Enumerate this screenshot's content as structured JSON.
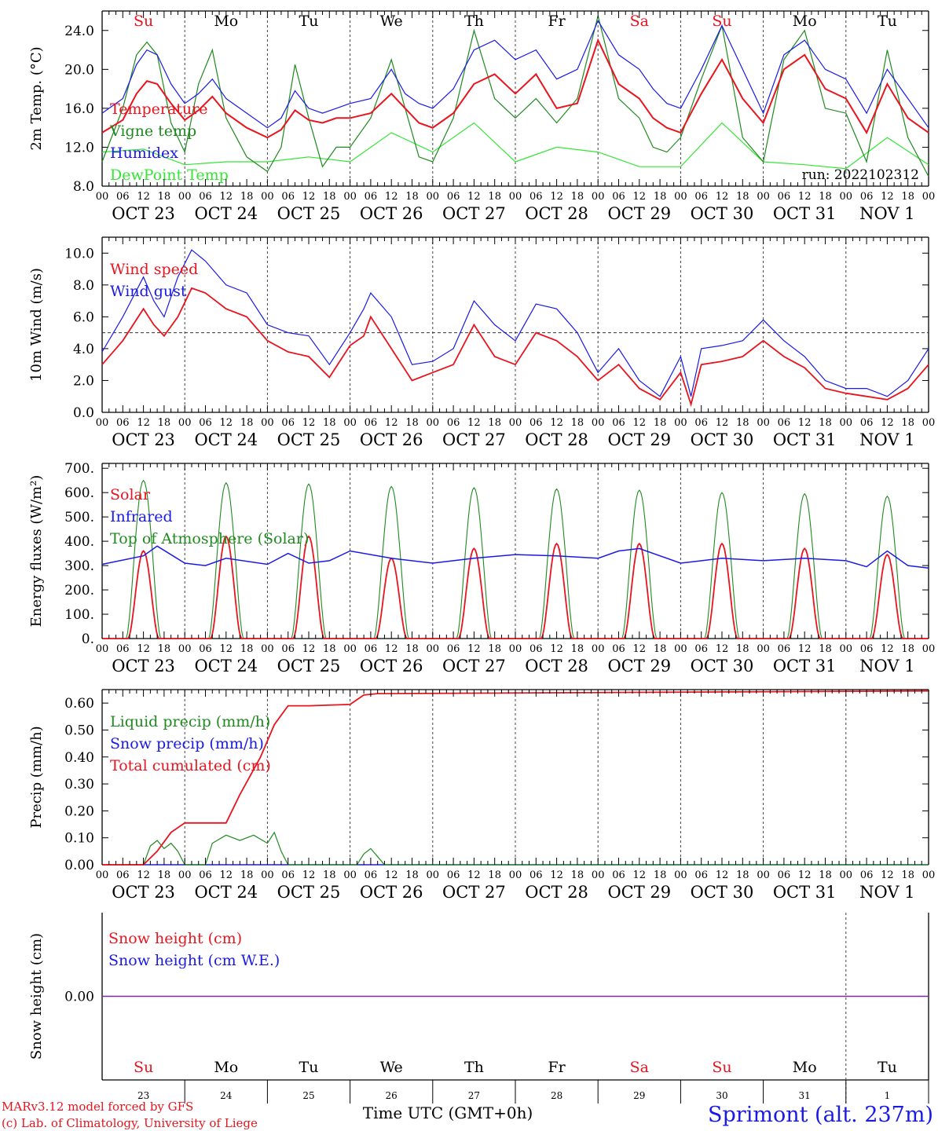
{
  "meta": {
    "footer_left_1": "MARv3.12 model forced by GFS",
    "footer_left_2": "(c) Lab. of Climatology, University of Liege",
    "footer_xlabel": "Time UTC (GMT+0h)",
    "footer_location": "Sprimont (alt. 237m)",
    "run_label": "run: 2022102312"
  },
  "colors": {
    "red": "#e8141e",
    "blue": "#1a1ae6",
    "green": "#1f8a1f",
    "lightgreen": "#33e633",
    "purple": "#7a2a9e",
    "axis": "#000000"
  },
  "time_axis": {
    "hours_per_day": [
      "00",
      "06",
      "12",
      "18"
    ],
    "last_hour": "00",
    "dates": [
      "OCT 23",
      "OCT 24",
      "OCT 25",
      "OCT 26",
      "OCT 27",
      "OCT 28",
      "OCT 29",
      "OCT 30",
      "OCT 31",
      "NOV  1"
    ],
    "weekdays": [
      "Su",
      "Mo",
      "Tu",
      "We",
      "Th",
      "Fr",
      "Sa",
      "Su",
      "Mo",
      "Tu"
    ],
    "weekday_colors": [
      "red",
      "black",
      "black",
      "black",
      "black",
      "black",
      "red",
      "red",
      "black",
      "black"
    ],
    "day_numbers": [
      "23",
      "24",
      "25",
      "26",
      "27",
      "28",
      "29",
      "30",
      "31",
      "1"
    ]
  },
  "chart_data": [
    {
      "type": "line",
      "ylabel": "2m Temp. (°C)",
      "ylim": [
        8,
        26
      ],
      "yticks": [
        "8.0",
        "12.0",
        "16.0",
        "20.0",
        "24.0"
      ],
      "x_unit": "hours since OCT 23 00 UTC",
      "series": [
        {
          "name": "Temperature",
          "color": "red",
          "x": [
            0,
            6,
            10,
            13,
            16,
            20,
            24,
            28,
            32,
            36,
            42,
            48,
            52,
            56,
            60,
            64,
            68,
            72,
            78,
            84,
            88,
            92,
            96,
            102,
            108,
            114,
            120,
            126,
            132,
            138,
            144,
            150,
            156,
            160,
            164,
            168,
            174,
            180,
            186,
            192,
            198,
            204,
            210,
            216,
            222,
            228,
            234,
            240
          ],
          "y": [
            13.5,
            14.8,
            17.5,
            18.8,
            18.5,
            16.5,
            14.8,
            15.8,
            17.2,
            15.5,
            14.0,
            13.0,
            13.8,
            15.8,
            14.8,
            14.5,
            15.0,
            15.0,
            15.5,
            17.5,
            16.0,
            14.5,
            14.0,
            15.5,
            18.5,
            19.5,
            17.5,
            19.5,
            16.0,
            16.5,
            23.0,
            18.5,
            17.0,
            15.0,
            14.0,
            13.5,
            17.5,
            21.0,
            17.0,
            14.5,
            20.0,
            21.5,
            18.0,
            17.0,
            13.5,
            18.5,
            15.0,
            13.5
          ]
        },
        {
          "name": "Vigne temp",
          "color": "green",
          "x": [
            0,
            6,
            10,
            13,
            16,
            20,
            24,
            28,
            32,
            36,
            42,
            48,
            52,
            56,
            60,
            64,
            68,
            72,
            78,
            84,
            88,
            92,
            96,
            102,
            108,
            114,
            120,
            126,
            132,
            138,
            144,
            150,
            156,
            160,
            164,
            168,
            174,
            180,
            186,
            192,
            198,
            204,
            210,
            216,
            222,
            228,
            234,
            240
          ],
          "y": [
            10.5,
            16.0,
            21.5,
            22.8,
            21.5,
            14.5,
            11.5,
            18.5,
            22.0,
            15.0,
            11.0,
            9.5,
            12.0,
            20.5,
            15.0,
            10.0,
            12.0,
            12.0,
            15.0,
            21.0,
            16.0,
            11.0,
            10.5,
            15.0,
            24.0,
            17.0,
            15.0,
            17.0,
            14.5,
            17.0,
            25.5,
            17.0,
            15.0,
            12.0,
            11.5,
            13.0,
            19.0,
            24.5,
            13.0,
            10.5,
            21.0,
            24.0,
            16.0,
            15.5,
            10.5,
            22.0,
            13.0,
            9.0
          ]
        },
        {
          "name": "Humidex",
          "color": "blue",
          "x": [
            0,
            6,
            10,
            13,
            16,
            20,
            24,
            28,
            32,
            36,
            42,
            48,
            52,
            56,
            60,
            64,
            68,
            72,
            78,
            84,
            88,
            92,
            96,
            102,
            108,
            114,
            120,
            126,
            132,
            138,
            144,
            150,
            156,
            160,
            164,
            168,
            174,
            180,
            186,
            192,
            198,
            204,
            210,
            216,
            222,
            228,
            234,
            240
          ],
          "y": [
            15.5,
            17.0,
            20.5,
            22.0,
            21.5,
            18.5,
            16.5,
            17.5,
            19.0,
            17.0,
            15.5,
            14.0,
            15.0,
            17.8,
            16.0,
            15.5,
            16.0,
            16.5,
            17.0,
            20.0,
            17.5,
            16.5,
            16.0,
            18.0,
            22.0,
            23.0,
            21.0,
            22.0,
            19.0,
            20.0,
            25.0,
            21.5,
            20.0,
            18.0,
            16.5,
            16.0,
            20.0,
            24.5,
            20.0,
            15.5,
            21.5,
            23.0,
            20.0,
            19.0,
            15.5,
            20.0,
            17.0,
            14.0
          ]
        },
        {
          "name": "DewPoint Temp",
          "color": "lightgreen",
          "x": [
            0,
            12,
            24,
            36,
            48,
            60,
            72,
            84,
            96,
            108,
            120,
            132,
            144,
            156,
            168,
            180,
            192,
            204,
            216,
            228,
            240
          ],
          "y": [
            11.5,
            11.8,
            10.2,
            10.5,
            10.5,
            11.0,
            10.5,
            13.5,
            11.5,
            14.5,
            10.5,
            12.0,
            11.5,
            10.0,
            10.0,
            14.5,
            10.5,
            10.2,
            9.8,
            13.0,
            10.2
          ]
        }
      ]
    },
    {
      "type": "line",
      "ylabel": "10m Wind (m/s)",
      "ylim": [
        0,
        11
      ],
      "yticks": [
        "0.0",
        "2.0",
        "4.0",
        "6.0",
        "8.0",
        "10.0"
      ],
      "reference_line": 5.0,
      "series": [
        {
          "name": "Wind speed",
          "color": "red",
          "x": [
            0,
            6,
            12,
            15,
            18,
            22,
            26,
            30,
            36,
            42,
            48,
            54,
            60,
            66,
            72,
            76,
            78,
            84,
            90,
            96,
            102,
            108,
            114,
            120,
            126,
            132,
            138,
            144,
            150,
            156,
            162,
            168,
            171,
            174,
            180,
            186,
            192,
            198,
            204,
            210,
            216,
            222,
            228,
            234,
            240
          ],
          "y": [
            3.0,
            4.5,
            6.5,
            5.5,
            4.8,
            6.0,
            7.8,
            7.5,
            6.5,
            6.0,
            4.5,
            3.8,
            3.5,
            2.2,
            4.2,
            4.8,
            6.0,
            4.0,
            2.0,
            2.5,
            3.0,
            5.5,
            3.5,
            3.0,
            5.0,
            4.5,
            3.5,
            2.0,
            3.0,
            1.5,
            0.8,
            2.5,
            0.5,
            3.0,
            3.2,
            3.5,
            4.5,
            3.5,
            2.8,
            1.5,
            1.2,
            1.0,
            0.8,
            1.5,
            3.0
          ]
        },
        {
          "name": "Wind gust",
          "color": "blue",
          "x": [
            0,
            6,
            12,
            15,
            18,
            22,
            26,
            30,
            36,
            42,
            48,
            54,
            60,
            66,
            72,
            76,
            78,
            84,
            90,
            96,
            102,
            108,
            114,
            120,
            126,
            132,
            138,
            144,
            150,
            156,
            162,
            168,
            171,
            174,
            180,
            186,
            192,
            198,
            204,
            210,
            216,
            222,
            228,
            234,
            240
          ],
          "y": [
            3.8,
            6.0,
            8.5,
            7.0,
            6.0,
            8.5,
            10.2,
            9.5,
            8.0,
            7.5,
            5.5,
            5.0,
            4.8,
            3.0,
            5.0,
            6.5,
            7.5,
            6.0,
            3.0,
            3.2,
            4.0,
            7.0,
            5.5,
            4.5,
            6.8,
            6.5,
            5.0,
            2.5,
            4.0,
            2.0,
            1.0,
            3.5,
            1.0,
            4.0,
            4.2,
            4.5,
            5.8,
            4.5,
            3.5,
            2.0,
            1.5,
            1.5,
            1.0,
            2.0,
            4.0
          ]
        }
      ]
    },
    {
      "type": "line",
      "ylabel": "Energy fluxes (W/m²)",
      "ylim": [
        0,
        720
      ],
      "yticks": [
        "0.",
        "100.",
        "200.",
        "300.",
        "400.",
        "500.",
        "600.",
        "700."
      ],
      "solar_peaks": [
        360,
        420,
        420,
        330,
        370,
        390,
        390,
        390,
        370,
        345
      ],
      "toa_peaks": [
        650,
        640,
        635,
        625,
        620,
        615,
        610,
        600,
        595,
        585
      ],
      "series": [
        {
          "name": "Solar",
          "color": "red"
        },
        {
          "name": "Infrared",
          "color": "blue",
          "x": [
            0,
            12,
            16,
            24,
            30,
            36,
            48,
            54,
            60,
            66,
            72,
            84,
            96,
            108,
            120,
            132,
            144,
            150,
            156,
            168,
            180,
            192,
            204,
            216,
            222,
            228,
            234,
            240
          ],
          "y": [
            305,
            340,
            380,
            310,
            300,
            330,
            305,
            350,
            310,
            320,
            360,
            330,
            310,
            330,
            345,
            340,
            330,
            360,
            370,
            310,
            330,
            320,
            330,
            320,
            295,
            360,
            300,
            290
          ]
        },
        {
          "name": "Top of Atmosphere (Solar)",
          "color": "green"
        }
      ]
    },
    {
      "type": "line",
      "ylabel": "Precip (mm/h)",
      "ylim": [
        0,
        0.65
      ],
      "yticks": [
        "0.00",
        "0.10",
        "0.20",
        "0.30",
        "0.40",
        "0.50",
        "0.60"
      ],
      "series": [
        {
          "name": "Liquid precip (mm/h)",
          "color": "green",
          "x": [
            0,
            12,
            14,
            16,
            18,
            20,
            22,
            24,
            30,
            32,
            36,
            40,
            44,
            48,
            50,
            52,
            54,
            74,
            76,
            78,
            80,
            82,
            120,
            228,
            240
          ],
          "y": [
            0.0,
            0.0,
            0.07,
            0.09,
            0.06,
            0.08,
            0.05,
            0.0,
            0.0,
            0.08,
            0.11,
            0.09,
            0.11,
            0.08,
            0.12,
            0.05,
            0.0,
            0.0,
            0.04,
            0.06,
            0.03,
            0.0,
            0.0,
            0.0,
            0.0
          ]
        },
        {
          "name": "Snow precip (mm/h)",
          "color": "blue",
          "x": [
            0,
            240
          ],
          "y": [
            0.0,
            0.0
          ]
        },
        {
          "name": "Total cumulated (cm)",
          "color": "red",
          "x": [
            0,
            12,
            16,
            20,
            24,
            36,
            40,
            46,
            50,
            54,
            60,
            72,
            76,
            80,
            240
          ],
          "y": [
            0.0,
            0.0,
            0.05,
            0.12,
            0.155,
            0.155,
            0.26,
            0.4,
            0.52,
            0.59,
            0.59,
            0.595,
            0.63,
            0.635,
            0.645
          ]
        }
      ]
    },
    {
      "type": "line",
      "ylabel": "Snow height (cm)",
      "ylim": [
        -1,
        1
      ],
      "yticks": [
        "0.00"
      ],
      "series": [
        {
          "name": "Snow height (cm)",
          "color": "red",
          "x": [
            0,
            240
          ],
          "y": [
            0,
            0
          ]
        },
        {
          "name": "Snow height (cm W.E.)",
          "color": "blue",
          "x": [
            0,
            240
          ],
          "y": [
            0,
            0
          ]
        }
      ]
    }
  ]
}
